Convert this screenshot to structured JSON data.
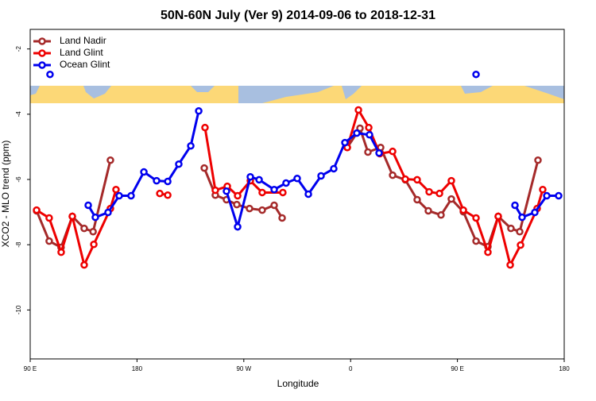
{
  "chart_data": {
    "type": "line",
    "title": "50N-60N July (Ver 9)   2014-09-06 to 2018-12-31",
    "x_label": "Longitude",
    "y_label": "XCO2 - MLO trend (ppm)",
    "xlim": [
      90,
      540
    ],
    "ylim": [
      -11.5,
      -1.4
    ],
    "xticks": [
      {
        "value": 90,
        "label": "90 E"
      },
      {
        "value": 180,
        "label": "180"
      },
      {
        "value": 270,
        "label": "90 W"
      },
      {
        "value": 360,
        "label": "0"
      },
      {
        "value": 450,
        "label": "90 E"
      },
      {
        "value": 540,
        "label": "180"
      }
    ],
    "yticks": [
      -2,
      -4,
      -6,
      -8,
      -10
    ],
    "legend": "top-left",
    "series": [
      {
        "name": "Land Nadir",
        "color": "#a52a2a",
        "x": [
          95.4,
          106,
          116,
          125.5,
          135.5,
          143,
          157.6,
          null,
          236.7,
          246,
          255.4,
          264.1,
          274.8,
          285.5,
          295.6,
          302.3,
          null,
          357.2,
          367.9,
          374.6,
          385.3,
          395.4,
          406.1,
          416.1,
          425.5,
          436.2,
          444.9,
          455,
          465.7,
          475.7,
          484.4,
          495.1,
          502.5,
          517.9
        ],
        "values": [
          -6.96,
          -7.89,
          -8.08,
          -7.13,
          -7.5,
          -7.6,
          -5.41,
          null,
          -5.65,
          -6.48,
          -6.62,
          -6.77,
          -6.89,
          -6.94,
          -6.79,
          -7.18,
          null,
          -5.02,
          -4.43,
          -5.16,
          -5.02,
          -5.87,
          -6.01,
          -6.62,
          -6.96,
          -7.09,
          -6.6,
          -6.99,
          -7.89,
          -8.06,
          -7.13,
          -7.5,
          -7.6,
          -5.41
        ]
      },
      {
        "name": "Land Glint",
        "color": "#ee0000",
        "x": [
          95.4,
          106,
          116.1,
          125.5,
          135.5,
          143.6,
          157.6,
          162.3,
          null,
          199.2,
          205.9,
          null,
          237.3,
          246,
          256.1,
          264.8,
          275.5,
          285.5,
          302.9,
          null,
          357.2,
          366.6,
          375.3,
          384.6,
          395.4,
          406.1,
          416.1,
          426.2,
          434.9,
          444.9,
          455,
          465.7,
          475.7,
          484.4,
          494.5,
          503.2,
          517.2,
          521.9
        ],
        "values": [
          -6.94,
          -7.18,
          -8.23,
          -7.13,
          -8.62,
          -7.99,
          -6.89,
          -6.31,
          null,
          -6.43,
          -6.48,
          null,
          -4.41,
          -6.33,
          -6.21,
          -6.5,
          -6.04,
          -6.4,
          -6.4,
          null,
          -5.02,
          -3.87,
          -4.41,
          -5.21,
          -5.14,
          -5.99,
          -6.01,
          -6.38,
          -6.43,
          -6.04,
          -6.94,
          -7.18,
          -8.23,
          -7.13,
          -8.62,
          -8.01,
          -6.89,
          -6.31
        ]
      },
      {
        "name": "Ocean Glint",
        "color": "#0000ee",
        "x": [
          106.7,
          null,
          138.9,
          144.9,
          155.6,
          165,
          175,
          185.8,
          196.5,
          205.9,
          215.2,
          225.3,
          232,
          null,
          255.4,
          264.8,
          275.5,
          282.9,
          295.6,
          305.6,
          315,
          324.4,
          335.1,
          345.8,
          355.2,
          365.2,
          375.9,
          384,
          null,
          465.7,
          null,
          498.5,
          504.5,
          515.2,
          525.3,
          535.3
        ],
        "values": [
          -2.78,
          null,
          -6.79,
          -7.16,
          -7.01,
          -6.5,
          -6.5,
          -5.77,
          -6.04,
          -6.06,
          -5.53,
          -4.97,
          -3.9,
          null,
          -6.36,
          -7.45,
          -5.92,
          -6.01,
          -6.31,
          -6.11,
          -5.97,
          -6.45,
          -5.89,
          -5.67,
          -4.87,
          -4.58,
          -4.63,
          -5.19,
          null,
          -2.78,
          null,
          -6.79,
          -7.16,
          -7.01,
          -6.5,
          -6.5
        ]
      }
    ]
  }
}
